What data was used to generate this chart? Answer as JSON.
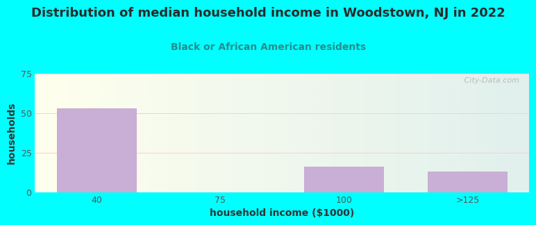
{
  "title": "Distribution of median household income in Woodstown, NJ in 2022",
  "subtitle": "Black or African American residents",
  "categories": [
    "40",
    "75",
    "100",
    ">125"
  ],
  "values": [
    53,
    0,
    16,
    13
  ],
  "bar_color": "#c9aed6",
  "xlabel": "household income ($1000)",
  "ylabel": "households",
  "ylim": [
    0,
    75
  ],
  "yticks": [
    0,
    25,
    50,
    75
  ],
  "background_color": "#00ffff",
  "title_color": "#2a2a2a",
  "subtitle_color": "#2a8a8a",
  "watermark": " City-Data.com",
  "title_fontsize": 13,
  "subtitle_fontsize": 10,
  "axis_label_fontsize": 10,
  "tick_fontsize": 9,
  "tick_color": "#555555"
}
